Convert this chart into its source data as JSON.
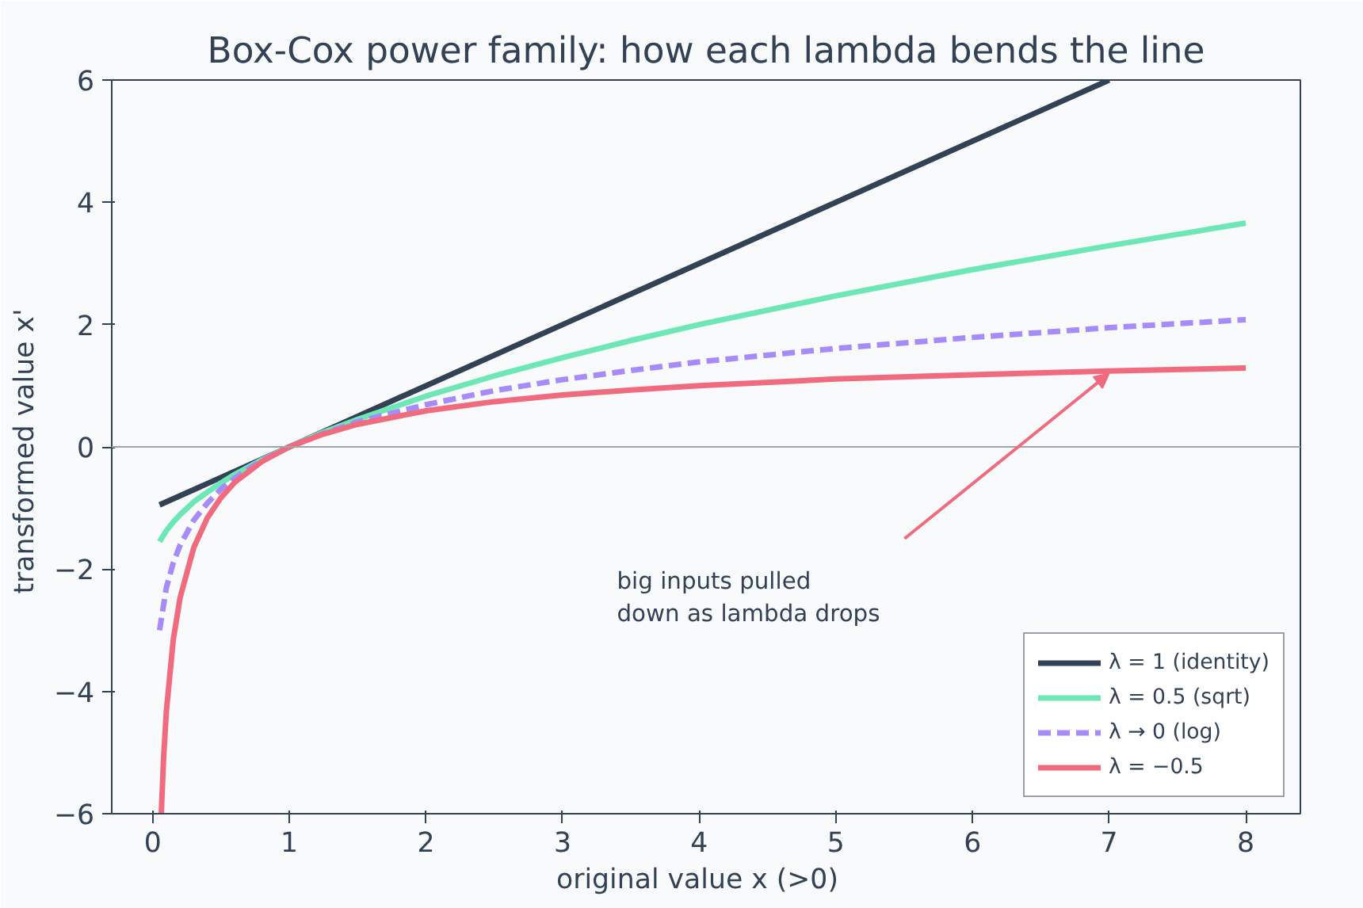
{
  "chart_data": {
    "type": "line",
    "title": "Box-Cox power family: how each lambda bends the line",
    "xlabel": "original value  x  (>0)",
    "ylabel": "transformed value  x'",
    "xlim": [
      -0.3,
      8.4
    ],
    "ylim": [
      -6,
      6
    ],
    "xticks": [
      0,
      1,
      2,
      3,
      4,
      5,
      6,
      7,
      8
    ],
    "yticks": [
      {
        "value": -6,
        "label": "−6"
      },
      {
        "value": -4,
        "label": "−4"
      },
      {
        "value": -2,
        "label": "−2"
      },
      0,
      2,
      4,
      6
    ],
    "grid": false,
    "legend": "bottom right",
    "marker": "none",
    "ref_lines": [
      {
        "axis": "y",
        "value": 0,
        "color": "#a0a4ab"
      }
    ],
    "annotations": [
      "big inputs pulled\ndown as lambda drops"
    ],
    "series": [
      {
        "name": "λ = 1 (identity)",
        "color": "#334155",
        "line_style": "solid",
        "x": [
          0.05,
          7
        ],
        "values": [
          -0.95,
          6
        ]
      },
      {
        "name": "λ = 0.5 (sqrt)",
        "color": "#6ee7b7",
        "line_style": "solid",
        "x": [
          0.05,
          0.1,
          0.15,
          0.2,
          0.3,
          0.4,
          0.5,
          0.6,
          0.8,
          1,
          1.25,
          1.5,
          2,
          2.5,
          3,
          3.5,
          4,
          5,
          6,
          7,
          8
        ],
        "values": [
          -1.55,
          -1.37,
          -1.23,
          -1.11,
          -0.9,
          -0.74,
          -0.59,
          -0.45,
          -0.21,
          0,
          0.24,
          0.45,
          0.83,
          1.16,
          1.46,
          1.74,
          2,
          2.47,
          2.9,
          3.29,
          3.66
        ]
      },
      {
        "name": "λ → 0 (log)",
        "color": "#a78bfa",
        "line_style": "dashed",
        "x": [
          0.05,
          0.1,
          0.15,
          0.2,
          0.3,
          0.4,
          0.5,
          0.6,
          0.8,
          1,
          1.25,
          1.5,
          2,
          2.5,
          3,
          3.5,
          4,
          5,
          6,
          7,
          8
        ],
        "values": [
          -3.0,
          -2.3,
          -1.9,
          -1.61,
          -1.2,
          -0.92,
          -0.69,
          -0.51,
          -0.22,
          0,
          0.22,
          0.41,
          0.69,
          0.92,
          1.1,
          1.25,
          1.39,
          1.61,
          1.79,
          1.95,
          2.08
        ]
      },
      {
        "name": "λ = −0.5",
        "color": "#f06b7e",
        "line_style": "solid",
        "x": [
          0.0625,
          0.08,
          0.1,
          0.15,
          0.2,
          0.3,
          0.4,
          0.5,
          0.6,
          0.8,
          1,
          1.25,
          1.5,
          2,
          2.5,
          3,
          3.5,
          4,
          5,
          6,
          7,
          8
        ],
        "values": [
          -6,
          -5.07,
          -4.32,
          -3.16,
          -2.47,
          -1.65,
          -1.16,
          -0.83,
          -0.58,
          -0.24,
          0,
          0.21,
          0.37,
          0.59,
          0.74,
          0.85,
          0.93,
          1,
          1.11,
          1.18,
          1.24,
          1.29
        ]
      }
    ]
  }
}
